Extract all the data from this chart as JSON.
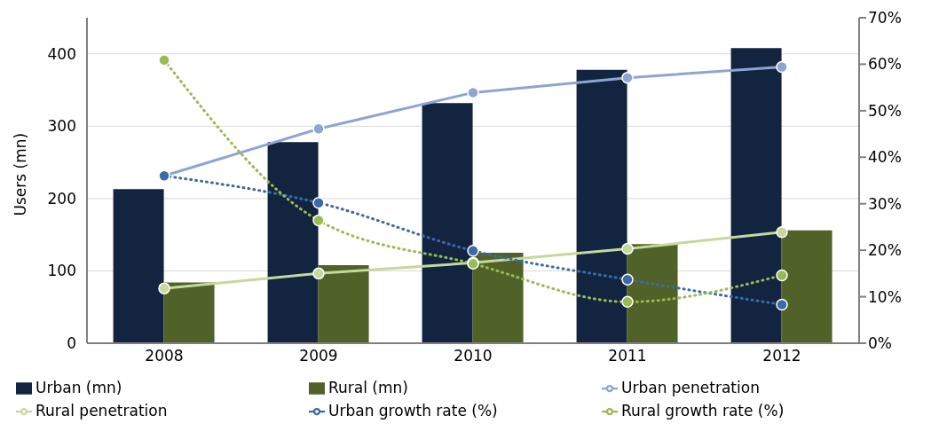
{
  "chart_data": {
    "type": "bar",
    "ylabel": "Users (mn)",
    "categories": [
      "2008",
      "2009",
      "2010",
      "2011",
      "2012"
    ],
    "series": [
      {
        "name": "Urban (mn)",
        "type": "bar",
        "color": "#12243f",
        "values": [
          213,
          278,
          332,
          378,
          408
        ]
      },
      {
        "name": "Rural (mn)",
        "type": "bar",
        "color": "#506228",
        "values": [
          84,
          108,
          125,
          137,
          156
        ]
      },
      {
        "name": "Urban penetration",
        "type": "line",
        "axis": "y2",
        "color": "#8ea5d1",
        "line_style": "solid",
        "marker": "circle",
        "values": [
          36,
          46.1,
          53.9,
          57.1,
          59.4
        ]
      },
      {
        "name": "Rural penetration",
        "type": "line",
        "axis": "y2",
        "color": "#c4d99c",
        "line_style": "solid",
        "marker": "circle",
        "values": [
          11.8,
          15.0,
          17.3,
          20.3,
          23.9
        ]
      },
      {
        "name": "Urban growth rate (%)",
        "type": "line",
        "axis": "y2",
        "color": "#3d6aa6",
        "line_style": "dotted",
        "marker": "circle",
        "values": [
          36,
          30.2,
          19.9,
          13.7,
          8.3
        ]
      },
      {
        "name": "Rural growth rate (%)",
        "type": "line",
        "axis": "y2",
        "color": "#98bb52",
        "line_style": "dotted",
        "marker": "circle",
        "values": [
          60.9,
          26.4,
          17.1,
          8.9,
          14.6
        ]
      }
    ],
    "ylim": [
      0,
      450
    ],
    "yticks": [
      0,
      100,
      200,
      300,
      400
    ],
    "y2lim": [
      0,
      70
    ],
    "y2ticks": [
      {
        "value": 0,
        "label": "0%"
      },
      {
        "value": 10,
        "label": "10%"
      },
      {
        "value": 20,
        "label": "20%"
      },
      {
        "value": 30,
        "label": "30%"
      },
      {
        "value": 40,
        "label": "40%"
      },
      {
        "value": 50,
        "label": "50%"
      },
      {
        "value": 60,
        "label": "60%"
      },
      {
        "value": 70,
        "label": "70%"
      }
    ],
    "grid": "y",
    "legend": "bottom"
  }
}
